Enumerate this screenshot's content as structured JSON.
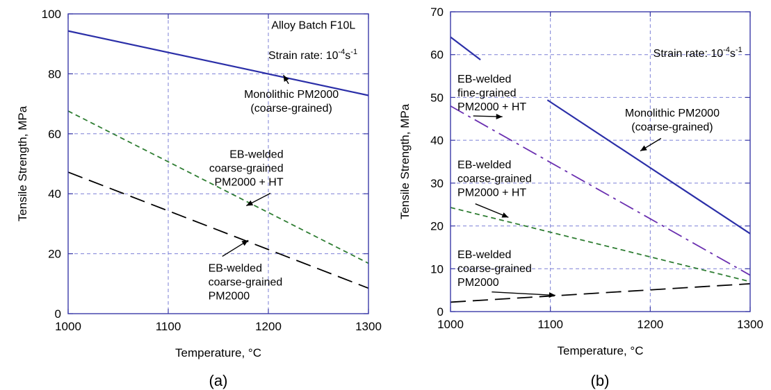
{
  "chart_data": [
    {
      "type": "line",
      "panel_label": "(a)",
      "xlabel": "Temperature, °C",
      "ylabel": "Tensile Strength, MPa",
      "xlim": [
        1000,
        1300
      ],
      "ylim": [
        0,
        100
      ],
      "xticks": [
        1000,
        1100,
        1200,
        1300
      ],
      "yticks": [
        0,
        20,
        40,
        60,
        80,
        100
      ],
      "grid": true,
      "annotations": [
        {
          "lines": [
            "Alloy Batch F10L"
          ],
          "at": [
            1245,
            95
          ],
          "anchor": "middle"
        },
        {
          "lines": [
            "Strain rate: 10",
            "-4",
            "s",
            "-1"
          ],
          "superscript_style": true,
          "at": [
            1200,
            85
          ],
          "anchor": "start"
        },
        {
          "lines": [
            "Monolithic PM2000",
            "(coarse-grained)"
          ],
          "at": [
            1223,
            72
          ],
          "anchor": "middle",
          "arrow_to": [
            1215,
            79.6
          ]
        },
        {
          "lines": [
            "EB-welded",
            "coarse-grained",
            "PM2000 + HT"
          ],
          "at": [
            1215,
            52
          ],
          "anchor": "end",
          "arrow_to": [
            1178,
            36
          ]
        },
        {
          "lines": [
            "EB-welded",
            "coarse-grained",
            "PM2000"
          ],
          "at": [
            1140,
            14
          ],
          "anchor": "start",
          "arrow_to": [
            1180,
            24.5
          ]
        }
      ],
      "series": [
        {
          "label": "Monolithic PM2000 (coarse-grained)",
          "color": "#2b2fa8",
          "dash": "solid",
          "x": [
            1000,
            1300
          ],
          "y": [
            94.3,
            72.8
          ]
        },
        {
          "label": "EB-welded coarse-grained PM2000 + HT",
          "color": "#2e7d32",
          "dash": "short",
          "x": [
            1000,
            1300
          ],
          "y": [
            67.6,
            16.8
          ]
        },
        {
          "label": "EB-welded coarse-grained PM2000",
          "color": "#000000",
          "dash": "long",
          "x": [
            1000,
            1300
          ],
          "y": [
            47.2,
            8.5
          ]
        }
      ]
    },
    {
      "type": "line",
      "panel_label": "(b)",
      "xlabel": "Temperature, °C",
      "ylabel": "Tensile Strength, MPa",
      "xlim": [
        1000,
        1300
      ],
      "ylim": [
        0,
        70
      ],
      "xticks": [
        1000,
        1100,
        1200,
        1300
      ],
      "yticks": [
        0,
        10,
        20,
        30,
        40,
        50,
        60,
        70
      ],
      "grid": true,
      "annotations": [
        {
          "lines": [
            "Strain rate: 10",
            "-4",
            "s",
            "-1"
          ],
          "superscript_style": true,
          "at": [
            1203,
            59.5
          ],
          "anchor": "start"
        },
        {
          "lines": [
            "EB-welded",
            "fine-grained",
            "PM2000 + HT"
          ],
          "at": [
            1007,
            53.5
          ],
          "anchor": "start",
          "arrow_to": [
            1052,
            45.5
          ]
        },
        {
          "lines": [
            "Monolithic PM2000",
            "(coarse-grained)"
          ],
          "at": [
            1222,
            45.5
          ],
          "anchor": "middle",
          "arrow_to": [
            1190,
            37.5
          ]
        },
        {
          "lines": [
            "EB-welded",
            "coarse-grained",
            "PM2000 + HT"
          ],
          "at": [
            1007,
            33.5
          ],
          "anchor": "start",
          "arrow_to": [
            1058,
            22.0
          ]
        },
        {
          "lines": [
            "EB-welded",
            "coarse-grained",
            "PM2000"
          ],
          "at": [
            1007,
            12.5
          ],
          "anchor": "start",
          "arrow_to": [
            1105,
            3.8
          ]
        }
      ],
      "series": [
        {
          "label": "Monolithic PM2000 (coarse-grained)",
          "color": "#2b2fa8",
          "dash": "solid",
          "x": [
            1000,
            1030
          ],
          "y": [
            64.1,
            58.8
          ]
        },
        {
          "label": "Monolithic PM2000 (coarse-grained)",
          "color": "#2b2fa8",
          "dash": "solid",
          "x": [
            1097,
            1300
          ],
          "y": [
            49.4,
            18.2
          ]
        },
        {
          "label": "EB-welded fine-grained PM2000 + HT",
          "color": "#6a2fb0",
          "dash": "dashdot",
          "x": [
            1000,
            1300
          ],
          "y": [
            48.0,
            8.5
          ]
        },
        {
          "label": "EB-welded coarse-grained PM2000 + HT",
          "color": "#2e7d32",
          "dash": "short",
          "x": [
            1000,
            1300
          ],
          "y": [
            24.3,
            7.0
          ]
        },
        {
          "label": "EB-welded coarse-grained PM2000",
          "color": "#000000",
          "dash": "long",
          "x": [
            1000,
            1300
          ],
          "y": [
            2.2,
            6.5
          ]
        }
      ]
    }
  ]
}
